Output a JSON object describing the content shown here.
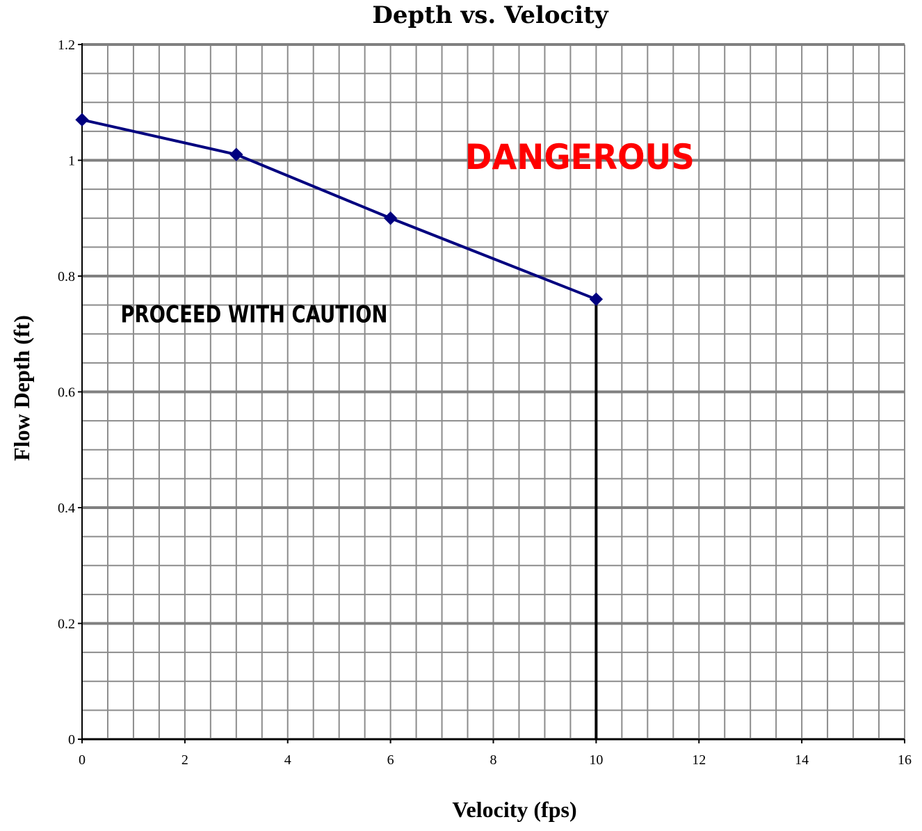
{
  "chart_data": {
    "type": "line",
    "title": "Depth vs. Velocity",
    "xlabel": "Velocity (fps)",
    "ylabel": "Flow Depth (ft)",
    "xlim": [
      0,
      16
    ],
    "ylim": [
      0,
      1.2
    ],
    "x_ticks": [
      "0",
      "2",
      "4",
      "6",
      "8",
      "10",
      "12",
      "14",
      "16"
    ],
    "y_ticks": [
      "0",
      "0.2",
      "0.4",
      "0.6",
      "0.8",
      "1",
      "1.2"
    ],
    "x_tick_values": [
      0,
      2,
      4,
      6,
      8,
      10,
      12,
      14,
      16
    ],
    "y_tick_values": [
      0,
      0.2,
      0.4,
      0.6,
      0.8,
      1.0,
      1.2
    ],
    "grid": true,
    "series": [
      {
        "x": [
          0,
          3,
          6,
          10
        ],
        "y": [
          1.07,
          1.01,
          0.9,
          0.76
        ],
        "color": "#00007f",
        "marker": "diamond"
      }
    ],
    "reference_line": {
      "x": 10,
      "y": [
        0,
        0.76
      ],
      "color": "#000000"
    },
    "annotations": [
      {
        "text": "PROCEED WITH CAUTION",
        "x": 0.75,
        "y": 0.72,
        "color": "#000000"
      },
      {
        "text": "DANGEROUS",
        "x": 7.45,
        "y": 0.985,
        "color": "#ff0000"
      }
    ]
  }
}
